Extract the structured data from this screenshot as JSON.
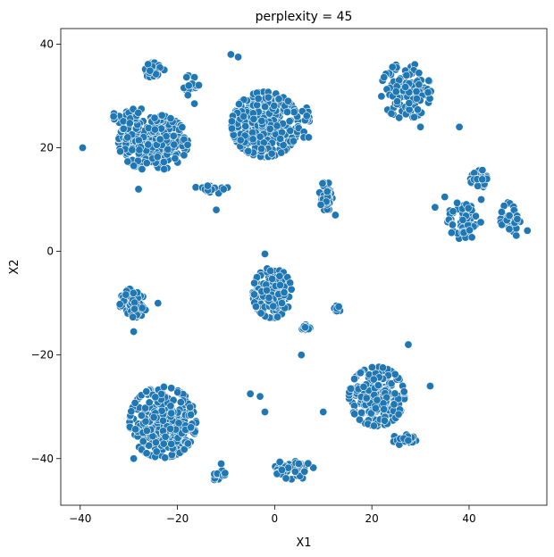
{
  "chart_data": {
    "type": "scatter",
    "title": "perplexity = 45",
    "xlabel": "X1",
    "ylabel": "X2",
    "xlim": [
      -44,
      56
    ],
    "ylim": [
      -49,
      43
    ],
    "xticks": [
      -40,
      -20,
      0,
      20,
      40
    ],
    "yticks": [
      -40,
      -20,
      0,
      20,
      40
    ],
    "grid": false,
    "marker_color": "#1f77b4",
    "marker_edge_color": "#ffffff",
    "clusters": [
      {
        "center": [
          -25,
          21
        ],
        "spread": [
          5.0,
          3.8
        ],
        "count": 260
      },
      {
        "center": [
          -30,
          26
        ],
        "spread": [
          2.2,
          2.0
        ],
        "count": 30
      },
      {
        "center": [
          -25,
          35
        ],
        "spread": [
          1.6,
          1.0
        ],
        "count": 28
      },
      {
        "center": [
          -17,
          32
        ],
        "spread": [
          1.2,
          1.5
        ],
        "count": 18
      },
      {
        "center": [
          -2,
          24.5
        ],
        "spread": [
          4.8,
          4.4
        ],
        "count": 330
      },
      {
        "center": [
          6,
          25
        ],
        "spread": [
          0.8,
          2.2
        ],
        "count": 14
      },
      {
        "center": [
          -13,
          12
        ],
        "spread": [
          2.5,
          0.6
        ],
        "count": 22
      },
      {
        "center": [
          10.5,
          10.5
        ],
        "spread": [
          1.3,
          2.0
        ],
        "count": 40
      },
      {
        "center": [
          27,
          31
        ],
        "spread": [
          3.6,
          3.8
        ],
        "count": 120
      },
      {
        "center": [
          42,
          14
        ],
        "spread": [
          1.2,
          1.3
        ],
        "count": 42
      },
      {
        "center": [
          39,
          6
        ],
        "spread": [
          2.4,
          2.6
        ],
        "count": 60
      },
      {
        "center": [
          48.5,
          6
        ],
        "spread": [
          1.4,
          2.6
        ],
        "count": 40
      },
      {
        "center": [
          -29,
          -10
        ],
        "spread": [
          2.0,
          2.0
        ],
        "count": 75
      },
      {
        "center": [
          -0.5,
          -8
        ],
        "spread": [
          2.8,
          3.4
        ],
        "count": 190
      },
      {
        "center": [
          6.5,
          -15
        ],
        "spread": [
          0.6,
          0.6
        ],
        "count": 10
      },
      {
        "center": [
          13,
          -11
        ],
        "spread": [
          0.6,
          0.6
        ],
        "count": 10
      },
      {
        "center": [
          21,
          -28
        ],
        "spread": [
          4.0,
          4.0
        ],
        "count": 240
      },
      {
        "center": [
          26.5,
          -36.5
        ],
        "spread": [
          1.8,
          0.8
        ],
        "count": 25
      },
      {
        "center": [
          -23,
          -33
        ],
        "spread": [
          4.8,
          4.8
        ],
        "count": 300
      },
      {
        "center": [
          -11.5,
          -43.5
        ],
        "spread": [
          1.0,
          1.2
        ],
        "count": 14
      },
      {
        "center": [
          4,
          -42
        ],
        "spread": [
          2.8,
          1.4
        ],
        "count": 50
      }
    ],
    "outliers": [
      [
        -39.5,
        20
      ],
      [
        -28,
        12
      ],
      [
        -9,
        38
      ],
      [
        -7.5,
        37.5
      ],
      [
        -16.5,
        28.5
      ],
      [
        -10.5,
        12
      ],
      [
        -2,
        -0.5
      ],
      [
        -2,
        -31
      ],
      [
        -3,
        -28
      ],
      [
        -12,
        8
      ],
      [
        5.5,
        -20
      ],
      [
        9.5,
        9
      ],
      [
        12.5,
        7
      ],
      [
        32,
        -26
      ],
      [
        27.5,
        -18
      ],
      [
        30,
        24
      ],
      [
        38,
        24
      ],
      [
        33,
        8.5
      ],
      [
        42.5,
        10
      ],
      [
        52,
        4
      ],
      [
        -29,
        -15.5
      ],
      [
        -24,
        -10
      ],
      [
        -29,
        -40
      ],
      [
        6,
        22
      ],
      [
        7,
        22
      ],
      [
        10,
        -31
      ],
      [
        35,
        10.5
      ],
      [
        -5,
        -27.5
      ],
      [
        -11,
        -41
      ]
    ]
  }
}
